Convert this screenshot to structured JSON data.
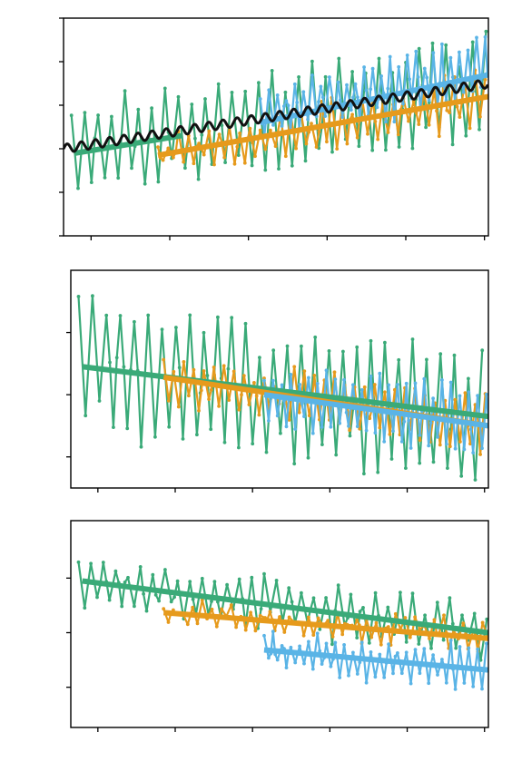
{
  "colors": {
    "green": "#3aaa78",
    "orange": "#e69a1c",
    "blue": "#5ab4e6",
    "black": "#111111",
    "axis": "#000000",
    "background": "#ffffff"
  },
  "chart_data": [
    {
      "type": "line",
      "title": "",
      "xlabel": "",
      "ylabel": "",
      "xlim": [
        0,
        108
      ],
      "ylim": [
        0,
        5
      ],
      "xticks": [
        7,
        27,
        47,
        67,
        87,
        107
      ],
      "yticks": [
        0,
        1,
        2,
        3,
        4,
        5
      ],
      "tick_labels_shown": false,
      "grid": false,
      "series": [
        {
          "color": "green",
          "kind": "oscillating",
          "x_range": [
            2,
            108
          ],
          "start": 2.0,
          "end": 3.4,
          "amp_start": 1.0,
          "amp_end": 1.3,
          "period": 3.4,
          "markers": true
        },
        {
          "color": "orange",
          "kind": "oscillating",
          "x_range": [
            24,
            108
          ],
          "start": 1.8,
          "end": 3.2,
          "amp_start": 0.35,
          "amp_end": 0.6,
          "period": 2.6,
          "markers": true
        },
        {
          "color": "blue",
          "kind": "oscillating",
          "x_range": [
            50,
            108
          ],
          "start": 2.8,
          "end": 3.8,
          "amp_start": 0.5,
          "amp_end": 0.8,
          "period": 2.2,
          "markers": true
        },
        {
          "color": "green",
          "kind": "trend",
          "x_range": [
            3,
            30
          ],
          "start": 1.9,
          "end": 2.3
        },
        {
          "color": "orange",
          "kind": "trend",
          "x_range": [
            24,
            108
          ],
          "start": 1.85,
          "end": 3.2
        },
        {
          "color": "blue",
          "kind": "trend",
          "x_range": [
            50,
            108
          ],
          "start": 2.6,
          "end": 3.7
        },
        {
          "color": "black",
          "kind": "cycle",
          "x_range": [
            0,
            108
          ],
          "start": 2.0,
          "end": 3.5,
          "amp": 0.1,
          "period": 3.6
        }
      ]
    },
    {
      "type": "line",
      "title": "",
      "xlabel": "",
      "ylabel": "",
      "xlim": [
        0,
        108
      ],
      "ylim": [
        0,
        3.5
      ],
      "xticks": [
        7,
        27,
        47,
        67,
        87,
        107
      ],
      "yticks": [
        0.5,
        1.5,
        2.5
      ],
      "tick_labels_shown": false,
      "grid": false,
      "series": [
        {
          "color": "green",
          "kind": "oscillating",
          "x_range": [
            2,
            108
          ],
          "start": 2.0,
          "end": 1.1,
          "amp_start": 1.1,
          "amp_end": 1.2,
          "period": 3.6,
          "markers": true
        },
        {
          "color": "orange",
          "kind": "oscillating",
          "x_range": [
            24,
            108
          ],
          "start": 1.75,
          "end": 1.0,
          "amp_start": 0.35,
          "amp_end": 0.5,
          "period": 2.6,
          "markers": true
        },
        {
          "color": "blue",
          "kind": "oscillating",
          "x_range": [
            50,
            108
          ],
          "start": 1.5,
          "end": 1.0,
          "amp_start": 0.45,
          "amp_end": 0.6,
          "period": 2.3,
          "markers": true
        },
        {
          "color": "green",
          "kind": "trend",
          "x_range": [
            3,
            108
          ],
          "start": 1.95,
          "end": 1.15
        },
        {
          "color": "orange",
          "kind": "trend",
          "x_range": [
            24,
            108
          ],
          "start": 1.78,
          "end": 1.0
        },
        {
          "color": "blue",
          "kind": "trend",
          "x_range": [
            50,
            108
          ],
          "start": 1.5,
          "end": 1.0
        }
      ]
    },
    {
      "type": "line",
      "title": "",
      "xlabel": "",
      "ylabel": "",
      "xlim": [
        0,
        108
      ],
      "ylim": [
        0,
        3.6
      ],
      "xticks": [
        7,
        27,
        47,
        67,
        87,
        107
      ],
      "yticks": [
        0.7,
        1.65,
        2.6
      ],
      "tick_labels_shown": false,
      "grid": false,
      "series": [
        {
          "color": "green",
          "kind": "oscillating",
          "x_range": [
            2,
            108
          ],
          "start": 2.55,
          "end": 1.65,
          "amp_start": 0.4,
          "amp_end": 0.5,
          "period": 3.2,
          "markers": true
        },
        {
          "color": "orange",
          "kind": "oscillating",
          "x_range": [
            24,
            108
          ],
          "start": 2.0,
          "end": 1.6,
          "amp_start": 0.12,
          "amp_end": 0.2,
          "period": 2.5,
          "markers": true
        },
        {
          "color": "blue",
          "kind": "oscillating",
          "x_range": [
            50,
            108
          ],
          "start": 1.35,
          "end": 1.0,
          "amp_start": 0.3,
          "amp_end": 0.35,
          "period": 2.3,
          "markers": true
        },
        {
          "color": "green",
          "kind": "trend",
          "x_range": [
            3,
            108
          ],
          "start": 2.55,
          "end": 1.65
        },
        {
          "color": "orange",
          "kind": "trend",
          "x_range": [
            24,
            108
          ],
          "start": 2.0,
          "end": 1.55
        },
        {
          "color": "blue",
          "kind": "trend",
          "x_range": [
            50,
            108
          ],
          "start": 1.35,
          "end": 1.0
        }
      ]
    }
  ]
}
